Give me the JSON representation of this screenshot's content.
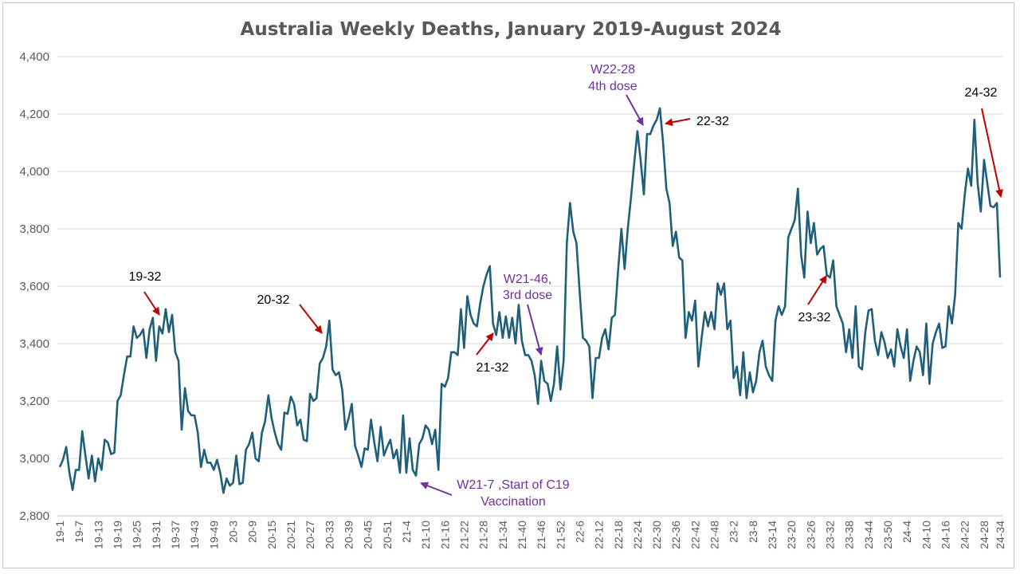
{
  "chart_data": {
    "type": "line",
    "title": "Australia Weekly Deaths, January 2019-August 2024",
    "xlabel": "",
    "ylabel": "",
    "ylim": [
      2800,
      4400
    ],
    "yticks": [
      2800,
      3000,
      3200,
      3400,
      3600,
      3800,
      4000,
      4200,
      4400
    ],
    "ytick_labels": [
      "2,800",
      "3,000",
      "3,200",
      "3,400",
      "3,600",
      "3,800",
      "4,000",
      "4,200",
      "4,400"
    ],
    "xtick_labels": [
      "19-1",
      "19-7",
      "19-13",
      "19-19",
      "19-25",
      "19-31",
      "19-37",
      "19-43",
      "19-49",
      "20-3",
      "20-9",
      "20-15",
      "20-21",
      "20-27",
      "20-33",
      "20-39",
      "20-45",
      "20-51",
      "21-4",
      "21-10",
      "21-16",
      "21-22",
      "21-28",
      "21-34",
      "21-40",
      "21-46",
      "21-52",
      "22-6",
      "22-12",
      "22-18",
      "22-24",
      "22-30",
      "22-36",
      "22-42",
      "22-48",
      "23-2",
      "23-8",
      "23-14",
      "23-20",
      "23-26",
      "23-32",
      "23-38",
      "23-44",
      "23-50",
      "24-4",
      "24-10",
      "24-16",
      "24-22",
      "24-28",
      "24-34"
    ],
    "grid": true,
    "line_color": "#1f5f7a",
    "series": [
      {
        "values": [
          2970,
          2995,
          3040,
          2950,
          2890,
          2960,
          2960,
          3095,
          3010,
          2930,
          3010,
          2920,
          3000,
          2960,
          3065,
          3055,
          3015,
          3020,
          3200,
          3220,
          3290,
          3355,
          3355,
          3460,
          3420,
          3430,
          3450,
          3350,
          3450,
          3490,
          3340,
          3460,
          3435,
          3520,
          3440,
          3500,
          3370,
          3340,
          3100,
          3245,
          3165,
          3150,
          3150,
          3090,
          2970,
          3030,
          2985,
          2985,
          2960,
          2995,
          2950,
          2880,
          2930,
          2905,
          2915,
          3010,
          2910,
          2915,
          3030,
          3050,
          3090,
          3000,
          2990,
          3090,
          3130,
          3220,
          3140,
          3090,
          3050,
          3030,
          3160,
          3155,
          3215,
          3190,
          3115,
          3135,
          3065,
          3060,
          3225,
          3200,
          3210,
          3330,
          3350,
          3390,
          3480,
          3310,
          3290,
          3300,
          3240,
          3100,
          3140,
          3190,
          3045,
          3010,
          2970,
          3035,
          3030,
          3135,
          3055,
          2990,
          3110,
          3010,
          3040,
          3065,
          3000,
          3030,
          2950,
          3150,
          2950,
          3070,
          2960,
          2940,
          3050,
          3070,
          3115,
          3100,
          3050,
          3100,
          2960,
          3260,
          3250,
          3280,
          3370,
          3370,
          3360,
          3520,
          3385,
          3565,
          3500,
          3470,
          3460,
          3540,
          3600,
          3640,
          3670,
          3470,
          3430,
          3510,
          3420,
          3495,
          3420,
          3490,
          3400,
          3535,
          3410,
          3360,
          3360,
          3340,
          3290,
          3190,
          3340,
          3270,
          3260,
          3200,
          3260,
          3390,
          3240,
          3340,
          3750,
          3890,
          3790,
          3750,
          3580,
          3420,
          3410,
          3390,
          3210,
          3350,
          3350,
          3420,
          3450,
          3380,
          3490,
          3500,
          3660,
          3800,
          3660,
          3800,
          3910,
          4030,
          4140,
          4040,
          3920,
          4130,
          4130,
          4160,
          4180,
          4220,
          4100,
          3940,
          3890,
          3740,
          3790,
          3700,
          3690,
          3420,
          3510,
          3480,
          3550,
          3320,
          3420,
          3510,
          3460,
          3510,
          3450,
          3610,
          3570,
          3610,
          3450,
          3480,
          3280,
          3320,
          3220,
          3370,
          3210,
          3300,
          3230,
          3270,
          3370,
          3410,
          3320,
          3290,
          3270,
          3480,
          3530,
          3500,
          3530,
          3770,
          3800,
          3830,
          3940,
          3710,
          3630,
          3860,
          3750,
          3820,
          3710,
          3730,
          3740,
          3640,
          3630,
          3690,
          3530,
          3500,
          3470,
          3370,
          3450,
          3350,
          3530,
          3320,
          3310,
          3440,
          3515,
          3520,
          3410,
          3360,
          3440,
          3405,
          3350,
          3380,
          3320,
          3450,
          3390,
          3350,
          3450,
          3270,
          3340,
          3390,
          3370,
          3290,
          3470,
          3260,
          3400,
          3440,
          3470,
          3385,
          3390,
          3530,
          3470,
          3570,
          3820,
          3800,
          3920,
          4010,
          3950,
          4180,
          3960,
          3860,
          4040,
          3960,
          3880,
          3875,
          3890,
          3630
        ]
      }
    ],
    "annotations": [
      {
        "text": "19-32",
        "week": 31
      },
      {
        "text": "20-32",
        "week": 84
      },
      {
        "text": "21-32",
        "week": 136
      },
      {
        "text": "W21-46,",
        "text2": "3rd dose",
        "week": 149
      },
      {
        "text": "W21-7 ,Start of C19",
        "text2": "Vaccination",
        "week": 110
      },
      {
        "text": "W22-28",
        "text2": "4th dose",
        "week": 180
      },
      {
        "text": "22-32",
        "week": 184
      },
      {
        "text": "23-32",
        "week": 240
      },
      {
        "text": "24-32",
        "week": 292
      }
    ]
  }
}
